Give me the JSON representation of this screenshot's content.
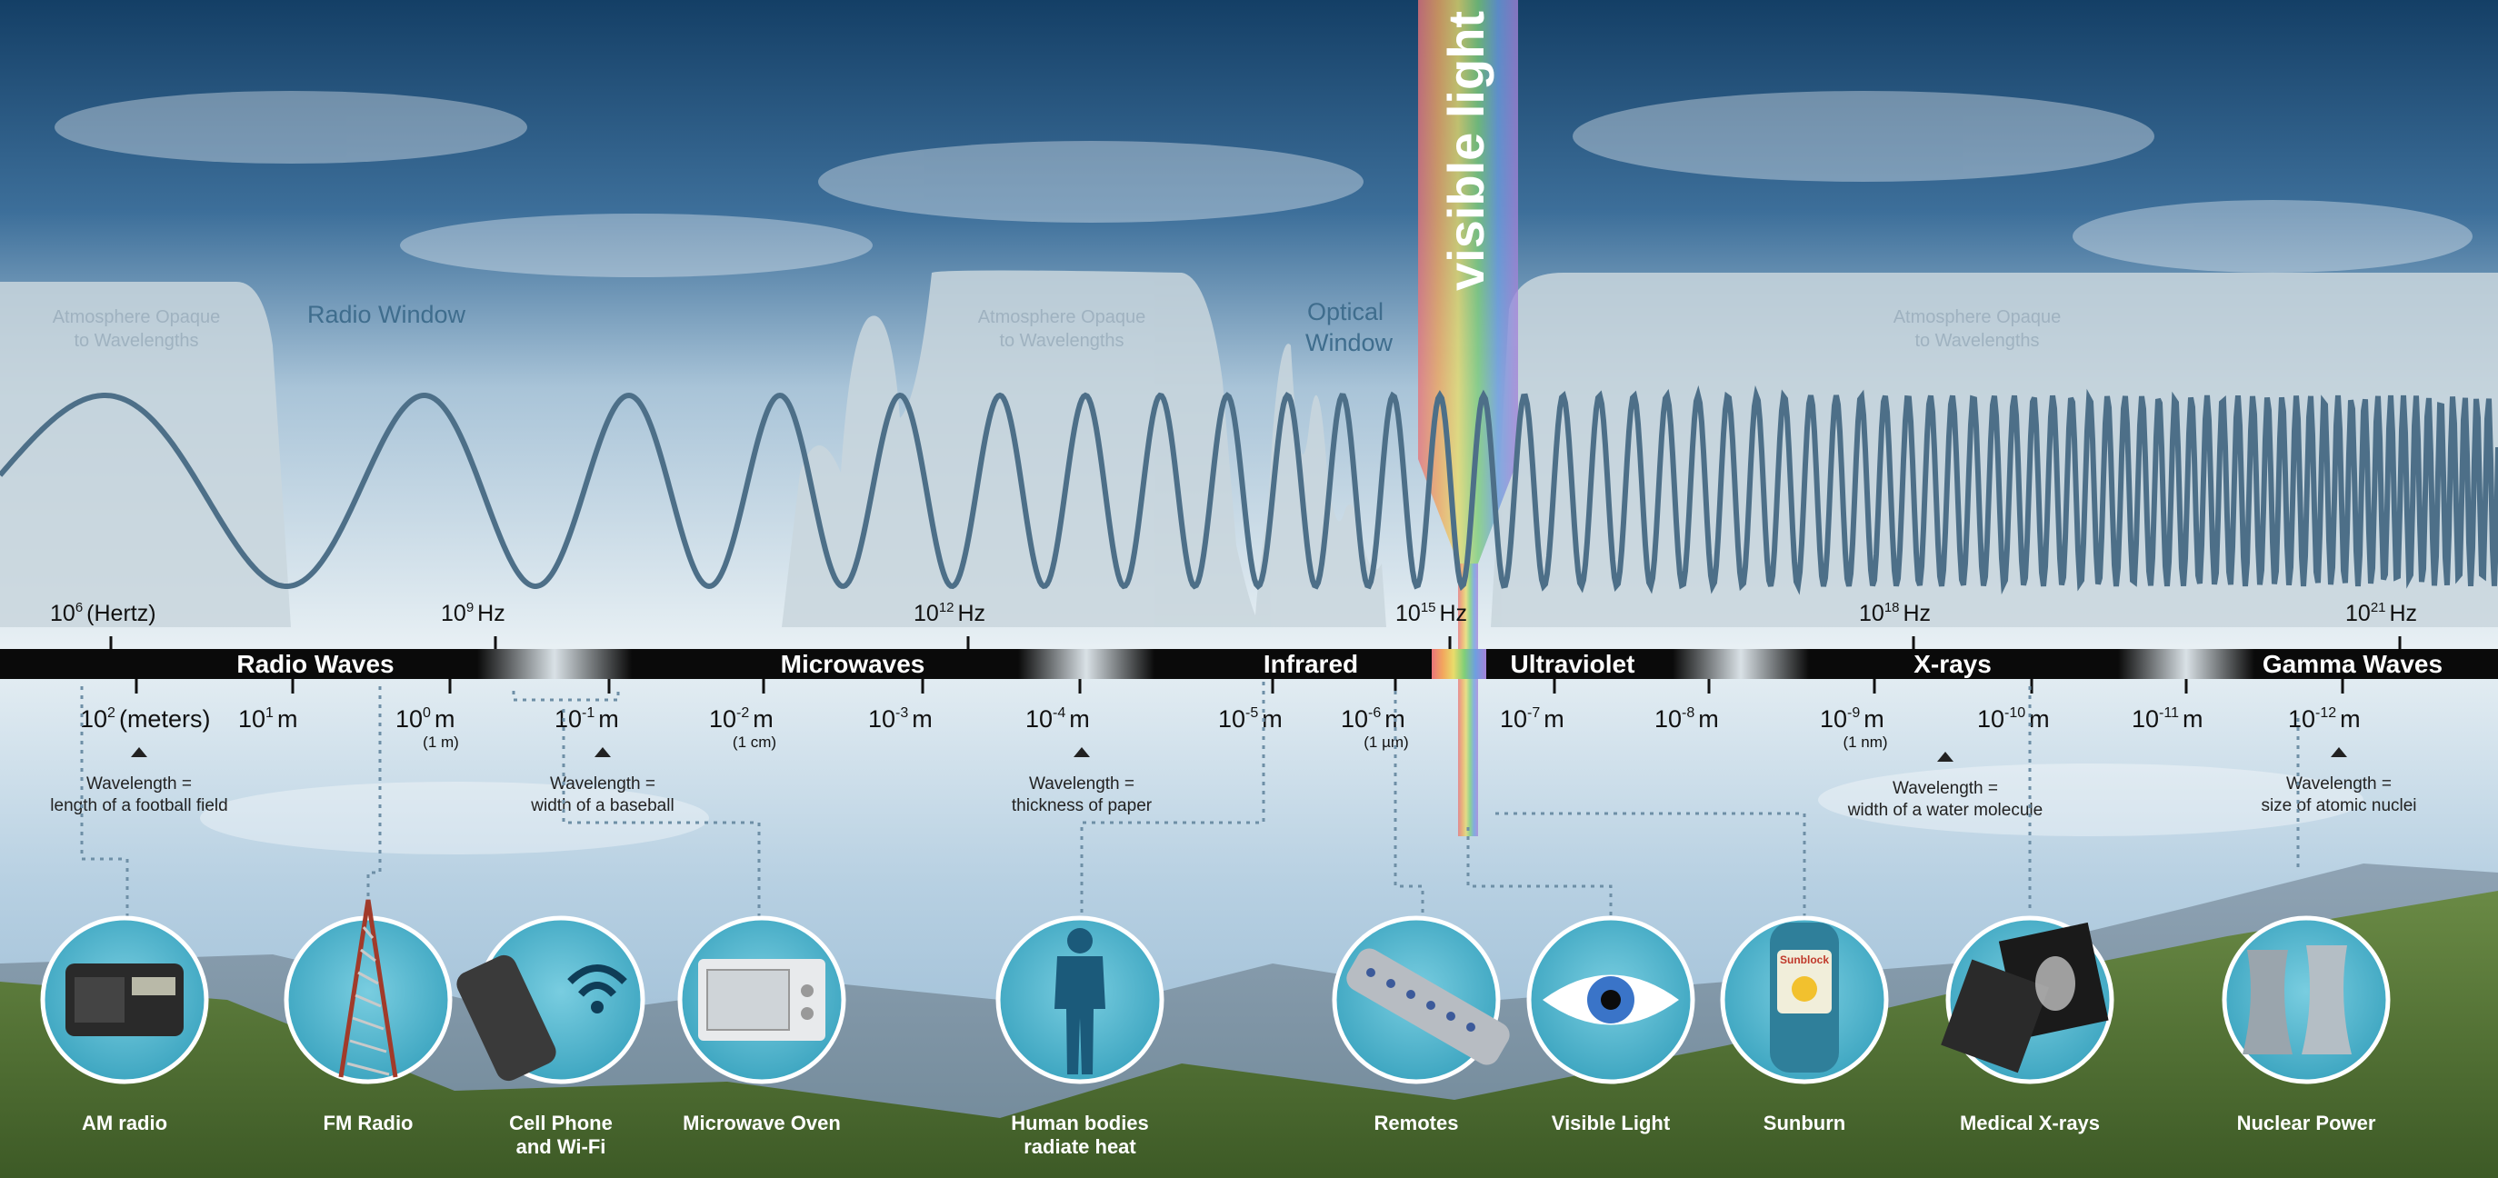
{
  "colors": {
    "sky_top": "#1d4a73",
    "sky_mid": "#6f9ac0",
    "wave": "#4d6f88",
    "band_bar": "#0a0a0a",
    "icon_fill": "#4fb6cf",
    "opaque_region": "#c9d6dd",
    "window_label": "#3f6d8d"
  },
  "visible_light_title": "visible light",
  "windows": {
    "opaque_1": [
      "Atmosphere Opaque",
      "to Wavelengths"
    ],
    "radio_window": "Radio Window",
    "opaque_2": [
      "Atmosphere Opaque",
      "to Wavelengths"
    ],
    "optical_window": [
      "Optical",
      "Window"
    ],
    "opaque_3": [
      "Atmosphere Opaque",
      "to Wavelengths"
    ]
  },
  "frequency_scale": [
    {
      "base": "10",
      "exp": "6",
      "unit": "(Hertz)"
    },
    {
      "base": "10",
      "exp": "9",
      "unit": "Hz"
    },
    {
      "base": "10",
      "exp": "12",
      "unit": "Hz"
    },
    {
      "base": "10",
      "exp": "15",
      "unit": "Hz"
    },
    {
      "base": "10",
      "exp": "18",
      "unit": "Hz"
    },
    {
      "base": "10",
      "exp": "21",
      "unit": "Hz"
    }
  ],
  "bands": [
    "Radio Waves",
    "Microwaves",
    "Infrared",
    "Ultraviolet",
    "X-rays",
    "Gamma Waves"
  ],
  "wavelength_scale": [
    {
      "base": "10",
      "exp": "2",
      "unit": "(meters)",
      "sub": ""
    },
    {
      "base": "10",
      "exp": "1",
      "unit": "m",
      "sub": ""
    },
    {
      "base": "10",
      "exp": "0",
      "unit": "m",
      "sub": "(1 m)"
    },
    {
      "base": "10",
      "exp": "-1",
      "unit": "m",
      "sub": ""
    },
    {
      "base": "10",
      "exp": "-2",
      "unit": "m",
      "sub": "(1 cm)"
    },
    {
      "base": "10",
      "exp": "-3",
      "unit": "m",
      "sub": ""
    },
    {
      "base": "10",
      "exp": "-4",
      "unit": "m",
      "sub": ""
    },
    {
      "base": "10",
      "exp": "-5",
      "unit": "m",
      "sub": ""
    },
    {
      "base": "10",
      "exp": "-6",
      "unit": "m",
      "sub": "(1 µm)"
    },
    {
      "base": "10",
      "exp": "-7",
      "unit": "m",
      "sub": ""
    },
    {
      "base": "10",
      "exp": "-8",
      "unit": "m",
      "sub": ""
    },
    {
      "base": "10",
      "exp": "-9",
      "unit": "m",
      "sub": "(1 nm)"
    },
    {
      "base": "10",
      "exp": "-10",
      "unit": "m",
      "sub": ""
    },
    {
      "base": "10",
      "exp": "-11",
      "unit": "m",
      "sub": ""
    },
    {
      "base": "10",
      "exp": "-12",
      "unit": "m",
      "sub": ""
    }
  ],
  "scale_notes": [
    [
      "Wavelength =",
      "length of a football field"
    ],
    [
      "Wavelength =",
      "width of a baseball"
    ],
    [
      "Wavelength =",
      "thickness of paper"
    ],
    [
      "Wavelength =",
      "width of a water molecule"
    ],
    [
      "Wavelength =",
      "size of atomic nuclei"
    ]
  ],
  "sources": [
    {
      "label": [
        "AM radio"
      ],
      "icon": "radio-icon"
    },
    {
      "label": [
        "FM Radio"
      ],
      "icon": "radio-tower-icon"
    },
    {
      "label": [
        "Cell Phone",
        "and Wi-Fi"
      ],
      "icon": "cell-phone-wifi-icon"
    },
    {
      "label": [
        "Microwave Oven"
      ],
      "icon": "microwave-oven-icon"
    },
    {
      "label": [
        "Human bodies",
        "radiate heat"
      ],
      "icon": "human-silhouette-icon"
    },
    {
      "label": [
        "Remotes"
      ],
      "icon": "remote-control-icon"
    },
    {
      "label": [
        "Visible Light"
      ],
      "icon": "eye-icon"
    },
    {
      "label": [
        "Sunburn"
      ],
      "icon": "sunblock-bottle-icon"
    },
    {
      "label": [
        "Medical X-rays"
      ],
      "icon": "xray-film-icon"
    },
    {
      "label": [
        "Nuclear Power"
      ],
      "icon": "cooling-tower-icon"
    }
  ],
  "sunblock_label": "Sunblock"
}
